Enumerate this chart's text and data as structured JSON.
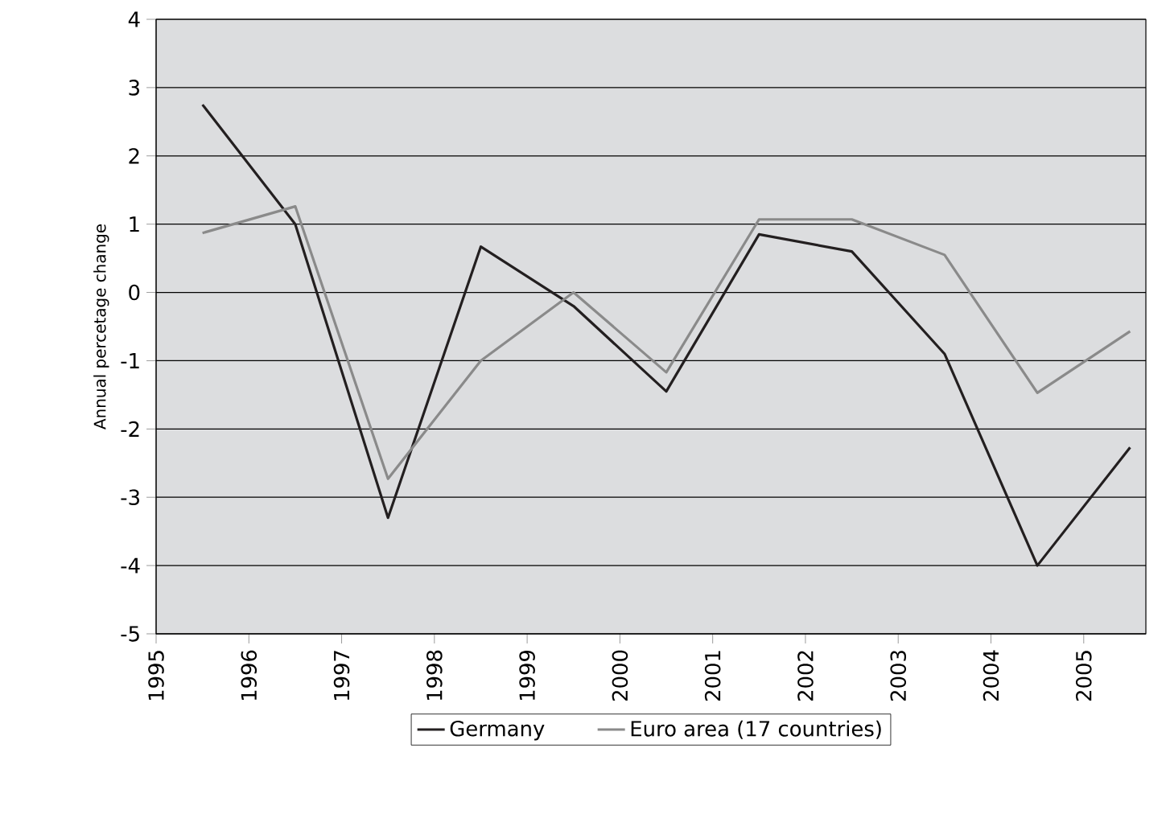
{
  "chart_data": {
    "type": "line",
    "ylabel": "Annual percetage change",
    "x": [
      1995.5,
      1996.5,
      1997.5,
      1998.5,
      1999.5,
      2000.5,
      2001.5,
      2002.5,
      2003.5,
      2004.5,
      2005.5
    ],
    "series": [
      {
        "name": "Germany",
        "color": "#231f20",
        "values": [
          2.75,
          1.0,
          -3.3,
          0.67,
          -0.2,
          -1.45,
          0.85,
          0.6,
          -0.9,
          -4.0,
          -2.27
        ]
      },
      {
        "name": "Euro area (17 countries)",
        "color": "#8a8a8a",
        "values": [
          0.87,
          1.26,
          -2.73,
          -1.0,
          0.0,
          -1.17,
          1.07,
          1.07,
          0.55,
          -1.47,
          -0.57
        ]
      }
    ],
    "xlim": [
      1995,
      2005.67
    ],
    "ylim": [
      -5,
      4
    ],
    "xticks": [
      1995,
      1996,
      1997,
      1998,
      1999,
      2000,
      2001,
      2002,
      2003,
      2004,
      2005
    ],
    "yticks": [
      -5,
      -4,
      -3,
      -2,
      -1,
      0,
      1,
      2,
      3,
      4
    ],
    "grid": "y",
    "legend": "bottom",
    "marker": "none",
    "line_style": "solid"
  }
}
